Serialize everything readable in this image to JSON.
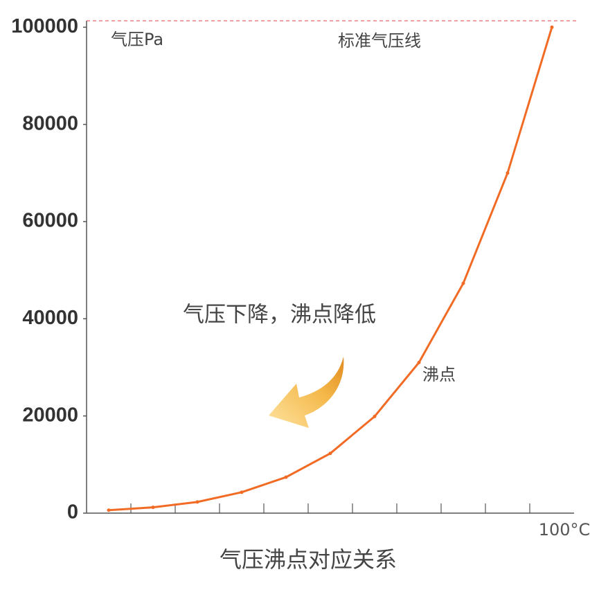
{
  "chart_data": {
    "type": "line",
    "title": "气压沸点对应关系",
    "y_label": "气压Pa",
    "x_end_label": "100°C",
    "reference_label": "标准气压线",
    "reference_value": 101325,
    "arrow_text": "气压下降，沸点降低",
    "curve_label": "沸点",
    "x": [
      0,
      10,
      20,
      30,
      40,
      50,
      60,
      70,
      80,
      90,
      100
    ],
    "series": [
      {
        "color": "#f26b25",
        "values": [
          600,
          1200,
          2300,
          4300,
          7400,
          12300,
          19900,
          31000,
          47300,
          70000,
          100000
        ]
      }
    ],
    "xlim": [
      -5,
      105
    ],
    "xticks": [
      5,
      15,
      25,
      35,
      45,
      55,
      65,
      75,
      85,
      95
    ],
    "ylim": [
      0,
      101325
    ],
    "yticks": [
      0,
      20000,
      40000,
      60000,
      80000,
      100000
    ]
  }
}
